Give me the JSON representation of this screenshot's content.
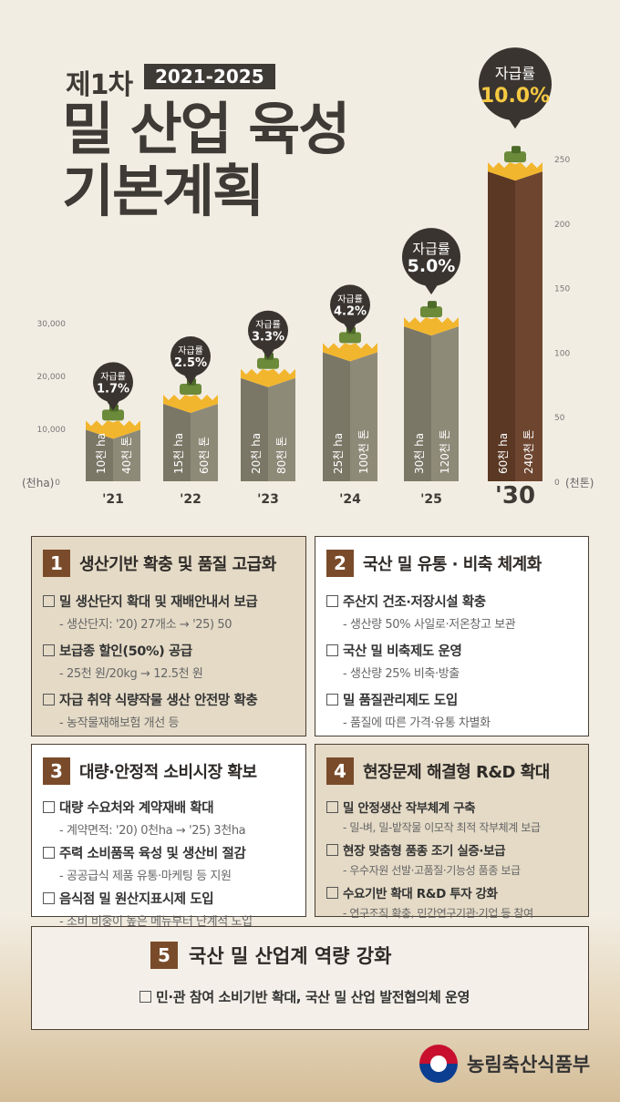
{
  "header": {
    "title_prefix": "제1차",
    "years": "2021-2025",
    "title_line1": "밀 산업 육성",
    "title_line2": "기본계획"
  },
  "chart_data": {
    "type": "bar",
    "categories": [
      "'21",
      "'22",
      "'23",
      "'24",
      "'25",
      "'30"
    ],
    "series": [
      {
        "name": "천ha",
        "values": [
          10,
          15,
          20,
          25,
          30,
          60
        ],
        "labels": [
          "10천 ha",
          "15천 ha",
          "20천 ha",
          "25천 ha",
          "30천 ha",
          "60천 ha"
        ]
      },
      {
        "name": "천톤",
        "values": [
          40,
          60,
          80,
          100,
          120,
          240
        ],
        "labels": [
          "40천 톤",
          "60천 톤",
          "80천 톤",
          "100천 톤",
          "120천 톤",
          "240천 톤"
        ]
      }
    ],
    "bubbles": [
      {
        "label": "자급률",
        "value": "1.7%"
      },
      {
        "label": "자급률",
        "value": "2.5%"
      },
      {
        "label": "자급률",
        "value": "3.3%"
      },
      {
        "label": "자급률",
        "value": "4.2%"
      },
      {
        "label": "자급률",
        "value": "5.0%"
      },
      {
        "label": "자급률",
        "value": "10.0%"
      }
    ],
    "left_axis": {
      "label": "(천ha)",
      "ticks": [
        "0",
        "10,000",
        "20,000",
        "30,000"
      ]
    },
    "right_axis": {
      "label": "(천톤)",
      "ticks": [
        "0",
        "50",
        "100",
        "150",
        "200",
        "250"
      ],
      "ylim": [
        0,
        250
      ]
    },
    "colors": {
      "bar_front": "#7a7766",
      "bar_side": "#8e8a78",
      "highlight_front": "#5a3824",
      "highlight_side": "#6e4630",
      "grain": "#f2b62e",
      "bubble": "#3a3430",
      "bubble_highlight": "#f5c842"
    }
  },
  "sections": [
    {
      "num": "1",
      "title": "생산기반 확충 및 품질 고급화",
      "items": [
        {
          "main": "밀 생산단지 확대 및 재배안내서 보급",
          "sub": "- 생산단지: '20) 27개소 → '25) 50"
        },
        {
          "main": "보급종 할인(50%) 공급",
          "sub": "- 25천 원/20kg → 12.5천 원"
        },
        {
          "main": "자급 취약 식량작물 생산 안전망 확충",
          "sub": "- 농작물재해보험 개선 등"
        }
      ]
    },
    {
      "num": "2",
      "title": "국산 밀 유통 · 비축 체계화",
      "items": [
        {
          "main": "주산지 건조·저장시설 확충",
          "sub": "- 생산량 50% 사일로·저온창고 보관"
        },
        {
          "main": "국산 밀 비축제도 운영",
          "sub": "- 생산량 25% 비축·방출"
        },
        {
          "main": "밀 품질관리제도 도입",
          "sub": "- 품질에 따른 가격·유통 차별화"
        }
      ]
    },
    {
      "num": "3",
      "title": "대량·안정적 소비시장 확보",
      "items": [
        {
          "main": "대량 수요처와 계약재배 확대",
          "sub": "- 계약면적: '20) 0천ha → '25) 3천ha"
        },
        {
          "main": "주력 소비품목 육성 및 생산비 절감",
          "sub": "- 공공급식 제품 유통·마케팅 등 지원"
        },
        {
          "main": "음식점 밀 원산지표시제 도입",
          "sub": "- 소비 비중이 높은 메뉴부터 단계적 도입"
        }
      ]
    },
    {
      "num": "4",
      "title": "현장문제 해결형 R&D 확대",
      "items": [
        {
          "main": "밀 안정생산 작부체계 구축",
          "sub": "- 밀-벼, 밀-밭작물 이모작 최적 작부체계 보급"
        },
        {
          "main": "현장 맞춤형 품종 조기 실증·보급",
          "sub": "- 우수자원 선발·고품질·기능성 품종 보급"
        },
        {
          "main": "수요기반 확대 R&D 투자 강화",
          "sub": "- 연구조직 확충, 민간연구기관·기업 등 참여"
        }
      ]
    }
  ],
  "section5": {
    "num": "5",
    "title": "국산 밀 산업계 역량 강화",
    "item": "민·관 참여 소비기반 확대, 국산 밀 산업 발전협의체 운영"
  },
  "footer": {
    "org": "농림축산식품부"
  }
}
